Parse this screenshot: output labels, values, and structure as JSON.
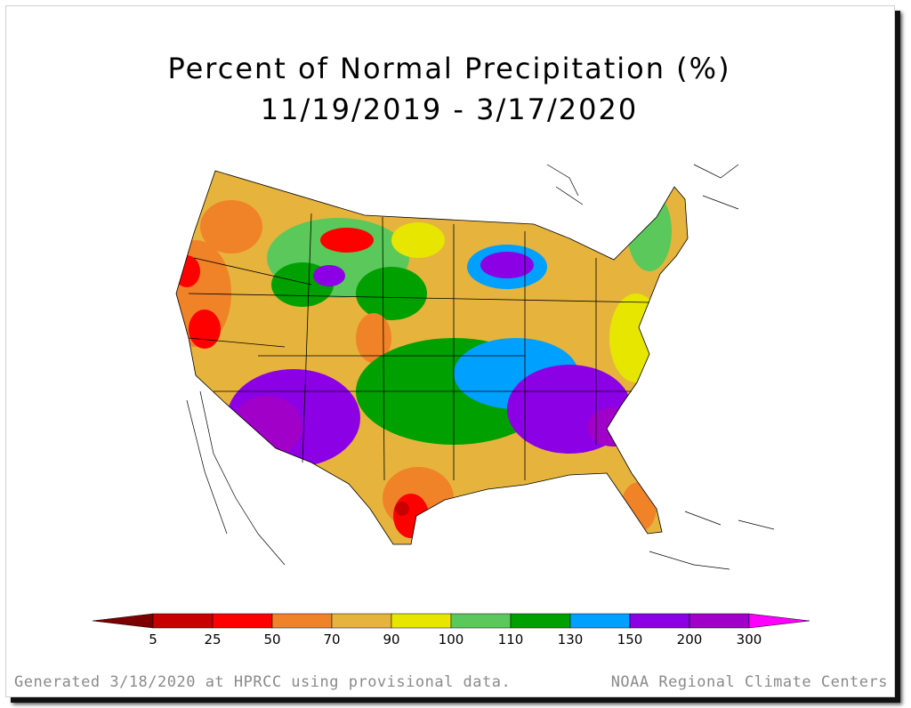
{
  "title_line1": "Percent of Normal Precipitation (%)",
  "title_line2": "11/19/2019 - 3/17/2020",
  "legend": {
    "tick_labels": [
      "5",
      "25",
      "50",
      "70",
      "90",
      "100",
      "110",
      "130",
      "150",
      "200",
      "300"
    ],
    "colors": {
      "lt5": "#7d0000",
      "5_25": "#c80000",
      "25_50": "#ff0000",
      "50_70": "#f08228",
      "70_90": "#e6b43c",
      "90_100": "#e6e600",
      "100_110": "#5ac85a",
      "110_130": "#00a000",
      "130_150": "#00a0ff",
      "150_200": "#8c00e6",
      "200_300": "#a000c8",
      "gt300": "#ff00ff"
    }
  },
  "footer_left": "Generated 3/18/2020 at HPRCC using provisional data.",
  "footer_right": "NOAA Regional Climate Centers"
}
